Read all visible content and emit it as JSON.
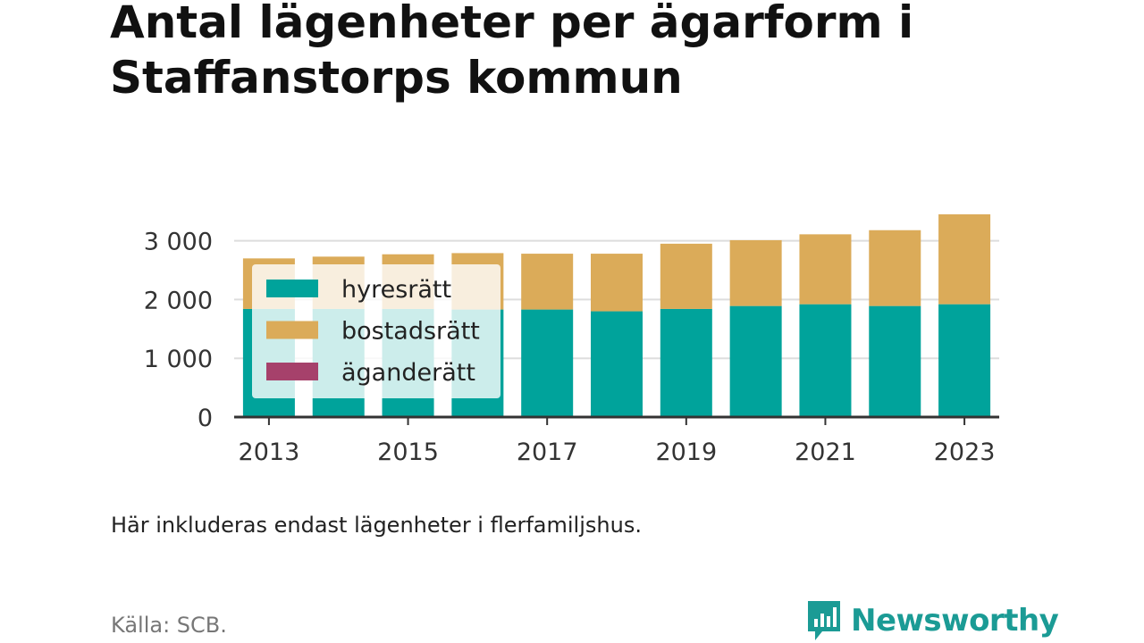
{
  "title": "Antal lägenheter per ägarform i Staffanstorps kommun",
  "note": "Här inkluderas endast lägenheter i flerfamiljshus.",
  "source": "Källa: SCB.",
  "brand": "Newsworthy",
  "colors": {
    "hyresratt": "#00a39b",
    "bostadsratt": "#dbab59",
    "aganderatt": "#a6416b",
    "grid": "#dddddd",
    "axis": "#333333",
    "brand": "#1b9b95"
  },
  "chart_data": {
    "type": "bar",
    "stacked": true,
    "title": "Antal lägenheter per ägarform i Staffanstorps kommun",
    "xlabel": "",
    "ylabel": "",
    "categories": [
      "2013",
      "2014",
      "2015",
      "2016",
      "2017",
      "2018",
      "2019",
      "2020",
      "2021",
      "2022",
      "2023"
    ],
    "x_tick_labels": [
      "2013",
      "2015",
      "2017",
      "2019",
      "2021",
      "2023"
    ],
    "y_ticks": [
      0,
      1000,
      2000,
      3000
    ],
    "y_tick_labels": [
      "0",
      "1 000",
      "2 000",
      "3 000"
    ],
    "ylim": [
      0,
      3500
    ],
    "grid": true,
    "legend_position": "top-left inside plot",
    "series": [
      {
        "name": "hyresrätt",
        "color": "#00a39b",
        "values": [
          1840,
          1840,
          1840,
          1830,
          1830,
          1800,
          1840,
          1890,
          1920,
          1890,
          1920
        ]
      },
      {
        "name": "bostadsrätt",
        "color": "#dbab59",
        "values": [
          860,
          890,
          930,
          960,
          950,
          980,
          1110,
          1120,
          1190,
          1290,
          1530
        ]
      },
      {
        "name": "äganderätt",
        "color": "#a6416b",
        "values": [
          0,
          0,
          0,
          0,
          0,
          0,
          0,
          0,
          0,
          0,
          0
        ]
      }
    ]
  }
}
